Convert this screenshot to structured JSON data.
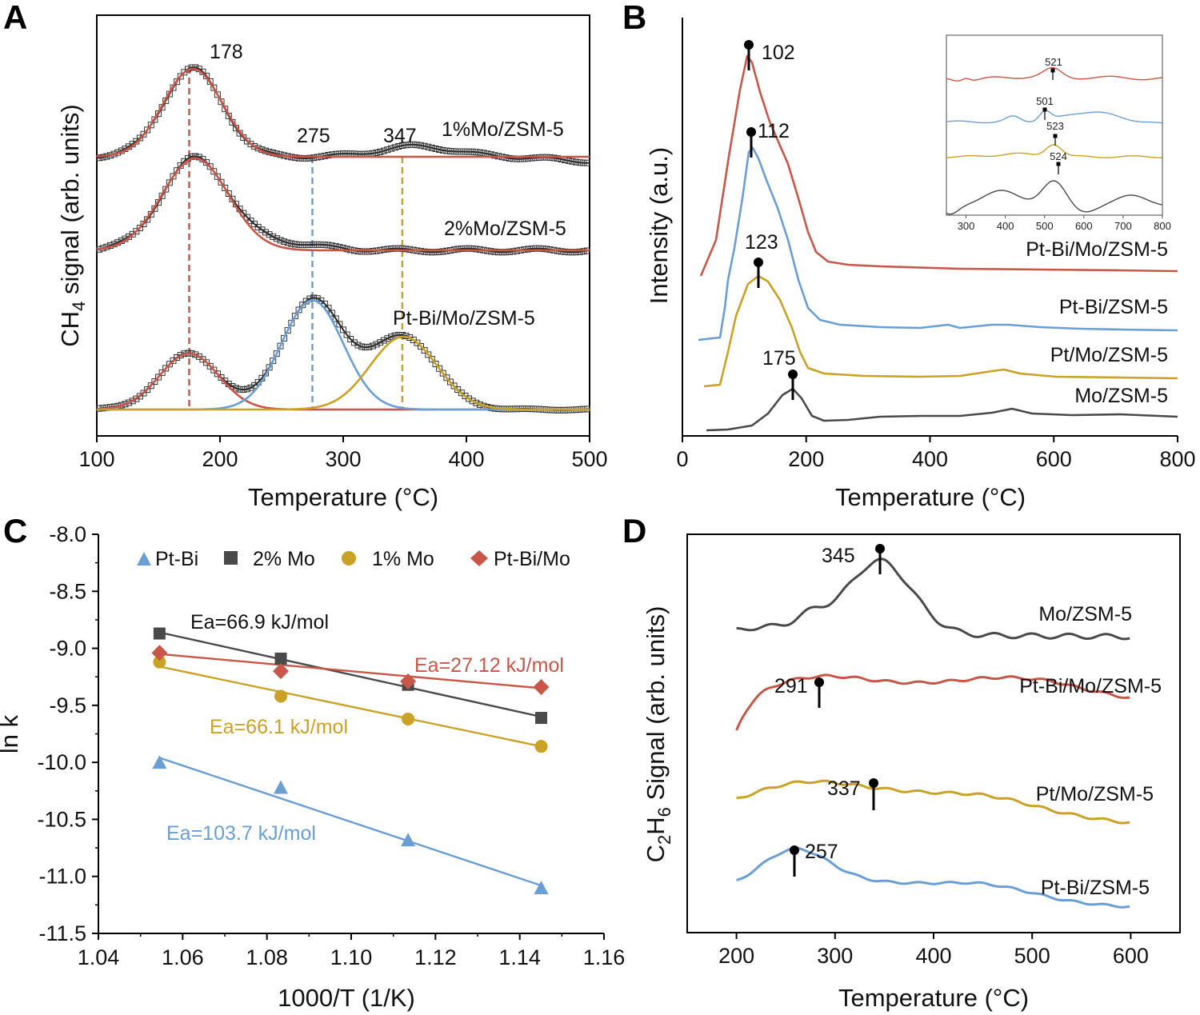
{
  "colors": {
    "red": "#c8574a",
    "blue": "#6b9fd4",
    "gold": "#c9a227",
    "dark": "#4a4a4a",
    "black": "#000000"
  },
  "chart_data": [
    {
      "panel": "A",
      "type": "line",
      "xlabel": "Temperature (°C)",
      "ylabel_main": "CH",
      "ylabel_sub": "4",
      "ylabel_rest": " signal (arb. units)",
      "xlim": [
        100,
        500
      ],
      "xticks": [
        100,
        200,
        300,
        400,
        500
      ],
      "series": [
        {
          "name": "1%Mo/ZSM-5",
          "color": "red",
          "fit_peaks": [
            {
              "center": 178,
              "amp": 1.0,
              "sigma": 24
            }
          ],
          "bump": {
            "center": 360,
            "amp": 0.03,
            "sigma": 30
          },
          "tail_drop": 0.03
        },
        {
          "name": "2%Mo/ZSM-5",
          "color": "red",
          "fit_peaks": [
            {
              "center": 180,
              "amp": 1.0,
              "sigma": 27
            }
          ],
          "bump": {
            "center": 250,
            "amp": 0.02,
            "sigma": 30
          },
          "tail_drop": 0.0
        },
        {
          "name": "Pt-Bi/Mo/ZSM-5",
          "colors": [
            "red",
            "blue",
            "gold"
          ],
          "fit_peaks": [
            {
              "center": 175,
              "amp": 1.0,
              "sigma": 24,
              "color": "red"
            },
            {
              "center": 275,
              "amp": 1.95,
              "sigma": 25,
              "color": "blue"
            },
            {
              "center": 349,
              "amp": 1.3,
              "sigma": 27,
              "color": "gold"
            }
          ],
          "tail_drop": 0.0
        }
      ],
      "peak_labels": [
        "178",
        "275",
        "347"
      ],
      "vlines": [
        {
          "x": 175,
          "color": "red"
        },
        {
          "x": 275,
          "color": "blue"
        },
        {
          "x": 348,
          "color": "gold"
        }
      ]
    },
    {
      "panel": "B",
      "type": "line",
      "xlabel": "Temperature (°C)",
      "ylabel": "Intensity (a.u.)",
      "xlim": [
        0,
        800
      ],
      "xticks": [
        0,
        200,
        400,
        600,
        800
      ],
      "series": [
        {
          "name": "Pt-Bi/Mo/ZSM-5",
          "color": "red",
          "peak": 102
        },
        {
          "name": "Pt-Bi/ZSM-5",
          "color": "blue",
          "peak": 112
        },
        {
          "name": "Pt/Mo/ZSM-5",
          "color": "gold",
          "peak": 123
        },
        {
          "name": "Mo/ZSM-5",
          "color": "dark",
          "peak": 175
        }
      ],
      "peak_labels": [
        "102",
        "112",
        "123",
        "175"
      ],
      "inset": {
        "xlim": [
          250,
          800
        ],
        "xticks": [
          300,
          400,
          500,
          600,
          700,
          800
        ],
        "series": [
          {
            "color": "red",
            "peak": 521
          },
          {
            "color": "blue",
            "peak": 501
          },
          {
            "color": "gold",
            "peak": 523
          },
          {
            "color": "dark",
            "peak": 524
          }
        ],
        "peak_labels": [
          "521",
          "501",
          "523",
          "524"
        ]
      }
    },
    {
      "panel": "C",
      "type": "scatter",
      "xlabel": "1000/T (1/K)",
      "ylabel": "ln k",
      "xlim": [
        1.04,
        1.16
      ],
      "ylim": [
        -11.5,
        -8.0
      ],
      "xticks": [
        "1.04",
        "1.06",
        "1.08",
        "1.10",
        "1.12",
        "1.14",
        "1.16"
      ],
      "yticks": [
        "-8.0",
        "-8.5",
        "-9.0",
        "-9.5",
        "-10.0",
        "-10.5",
        "-11.0",
        "-11.5"
      ],
      "series": [
        {
          "name": "Pt-Bi",
          "color": "blue",
          "marker": "triangle",
          "x": [
            1.0545,
            1.0833,
            1.1135,
            1.1451
          ],
          "y": [
            -10.0,
            -10.22,
            -10.68,
            -11.1
          ],
          "fit": [
            [
              1.0545,
              -9.96
            ],
            [
              1.1451,
              -11.08
            ]
          ]
        },
        {
          "name": "2% Mo",
          "color": "dark",
          "marker": "square",
          "x": [
            1.0545,
            1.0833,
            1.1135,
            1.1451
          ],
          "y": [
            -8.87,
            -9.09,
            -9.32,
            -9.61
          ],
          "fit": [
            [
              1.0545,
              -8.86
            ],
            [
              1.1451,
              -9.6
            ]
          ]
        },
        {
          "name": "1% Mo",
          "color": "gold",
          "marker": "circle",
          "x": [
            1.0545,
            1.0833,
            1.1135,
            1.1451
          ],
          "y": [
            -9.12,
            -9.42,
            -9.62,
            -9.86
          ],
          "fit": [
            [
              1.0545,
              -9.16
            ],
            [
              1.1451,
              -9.86
            ]
          ]
        },
        {
          "name": "Pt-Bi/Mo",
          "color": "red",
          "marker": "diamond",
          "x": [
            1.0545,
            1.0833,
            1.1135,
            1.1451
          ],
          "y": [
            -9.04,
            -9.2,
            -9.29,
            -9.34
          ],
          "fit": [
            [
              1.0545,
              -9.05
            ],
            [
              1.1451,
              -9.35
            ]
          ]
        }
      ],
      "annotations": [
        "Ea=66.9 kJ/mol",
        "Ea=27.12 kJ/mol",
        "Ea=66.1 kJ/mol",
        "Ea=103.7 kJ/mol"
      ]
    },
    {
      "panel": "D",
      "type": "line",
      "xlabel": "Temperature (°C)",
      "ylabel_main": "C",
      "ylabel_sub1": "2",
      "ylabel_mid": "H",
      "ylabel_sub2": "6",
      "ylabel_rest": " Signal (arb. units)",
      "xlim": [
        150,
        650
      ],
      "xticks": [
        200,
        300,
        400,
        500,
        600
      ],
      "series": [
        {
          "name": "Mo/ZSM-5",
          "color": "dark",
          "peak": 345
        },
        {
          "name": "Pt-Bi/Mo/ZSM-5",
          "color": "red",
          "peak": 291
        },
        {
          "name": "Pt/Mo/ZSM-5",
          "color": "gold",
          "peak": 337
        },
        {
          "name": "Pt-Bi/ZSM-5",
          "color": "blue",
          "peak": 257
        }
      ],
      "peak_labels": [
        "345",
        "291",
        "337",
        "257"
      ]
    }
  ]
}
